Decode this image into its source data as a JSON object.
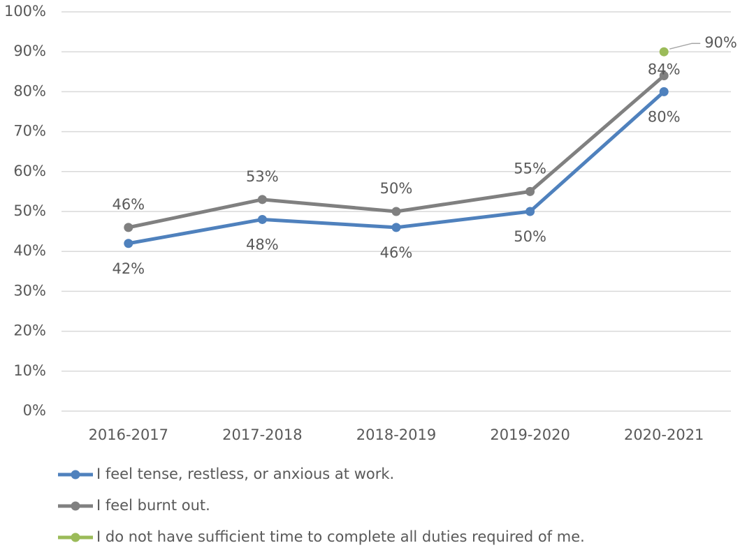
{
  "chart_data": {
    "type": "line",
    "categories": [
      "2016-2017",
      "2017-2018",
      "2018-2019",
      "2019-2020",
      "2020-2021"
    ],
    "series": [
      {
        "name": "I feel tense, restless, or anxious at work.",
        "color": "#4f81bd",
        "values": [
          42,
          48,
          46,
          50,
          80
        ],
        "value_labels": [
          "42%",
          "48%",
          "46%",
          "50%",
          "80%"
        ]
      },
      {
        "name": "I feel burnt out.",
        "color": "#808080",
        "values": [
          46,
          53,
          50,
          55,
          84
        ],
        "value_labels": [
          "46%",
          "53%",
          "50%",
          "55%",
          "84%"
        ]
      },
      {
        "name": "I do not have sufficient time to complete all duties required of me.",
        "color": "#9bbb59",
        "values": [
          null,
          null,
          null,
          null,
          90
        ],
        "value_labels": [
          null,
          null,
          null,
          null,
          "90%"
        ]
      }
    ],
    "ylim": [
      0,
      100
    ],
    "yticks": [
      {
        "value": 0,
        "label": "0%"
      },
      {
        "value": 10,
        "label": "10%"
      },
      {
        "value": 20,
        "label": "20%"
      },
      {
        "value": 30,
        "label": "30%"
      },
      {
        "value": 40,
        "label": "40%"
      },
      {
        "value": 50,
        "label": "50%"
      },
      {
        "value": 60,
        "label": "60%"
      },
      {
        "value": 70,
        "label": "70%"
      },
      {
        "value": 80,
        "label": "80%"
      },
      {
        "value": 90,
        "label": "90%"
      },
      {
        "value": 100,
        "label": "100%"
      }
    ],
    "grid": true,
    "legend": "bottom"
  }
}
